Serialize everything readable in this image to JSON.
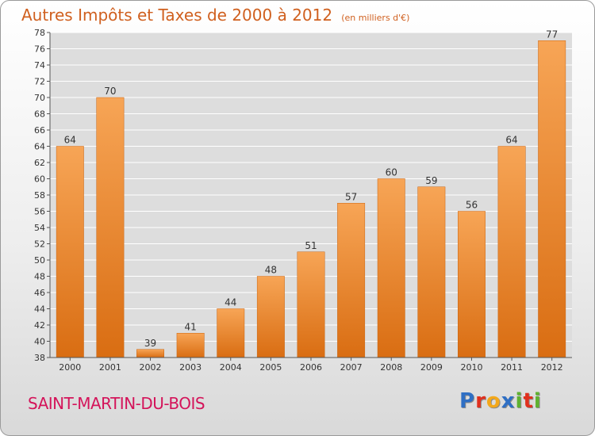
{
  "chart_data": {
    "type": "bar",
    "title": "Autres Impôts et Taxes de 2000 à 2012",
    "subtitle": "(en milliers d'€)",
    "xlabel": "",
    "ylabel": "",
    "categories": [
      "2000",
      "2001",
      "2002",
      "2003",
      "2004",
      "2005",
      "2006",
      "2007",
      "2008",
      "2009",
      "2010",
      "2011",
      "2012"
    ],
    "values": [
      64,
      70,
      39,
      41,
      44,
      48,
      51,
      57,
      60,
      59,
      56,
      64,
      77
    ],
    "ylim": [
      38,
      78
    ],
    "ytick_step": 2,
    "grid": true,
    "bar_color": "#f08a2c"
  },
  "footer": {
    "commune": "SAINT-MARTIN-DU-BOIS",
    "logo_letters": [
      "P",
      "r",
      "o",
      "x",
      "i",
      "t",
      "i"
    ],
    "logo_colors": [
      "#2f6fc4",
      "#e0301e",
      "#f3a81b",
      "#2f6fc4",
      "#5fb130",
      "#e0301e",
      "#5fb130"
    ]
  }
}
